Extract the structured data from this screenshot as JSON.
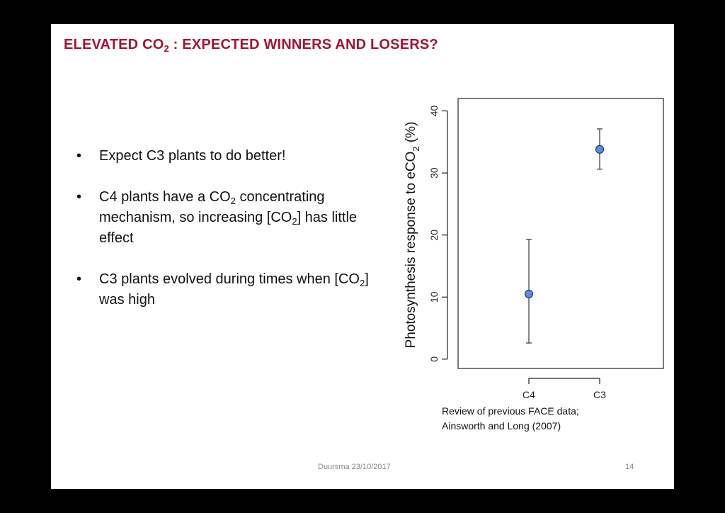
{
  "slide": {
    "title_main": "ELEVATED CO",
    "title_sub": "2",
    "title_rest": " : EXPECTED WINNERS AND LOSERS?",
    "bullets": [
      {
        "parts": [
          {
            "t": "Expect C3 plants to do better!"
          }
        ]
      },
      {
        "parts": [
          {
            "t": "C4 plants have a CO"
          },
          {
            "s": "2"
          },
          {
            "t": " concentrating mechanism, so increasing [CO"
          },
          {
            "s": "2"
          },
          {
            "t": "] has little effect"
          }
        ]
      },
      {
        "parts": [
          {
            "t": "C3 plants evolved during times when [CO"
          },
          {
            "s": "2"
          },
          {
            "t": "] was high"
          }
        ]
      }
    ],
    "caption_line1": "Review of previous FACE data;",
    "caption_line2": "Ainsworth and Long (2007)",
    "footer_left": "Duursma 23/10/2017",
    "footer_right": "14"
  },
  "chart_data": {
    "type": "scatter",
    "categories": [
      "C4",
      "C3"
    ],
    "values": [
      10.5,
      33.8
    ],
    "error_low": [
      2.6,
      30.6
    ],
    "error_high": [
      19.3,
      37.1
    ],
    "ylabel_main": "Photosynthesis response to eCO",
    "ylabel_sub": "2",
    "ylabel_unit": "  (%)",
    "yticks": [
      0,
      10,
      20,
      30,
      40
    ],
    "ylim": [
      -1.5,
      42
    ],
    "point_color": "#5b8fe0",
    "grid": false
  }
}
